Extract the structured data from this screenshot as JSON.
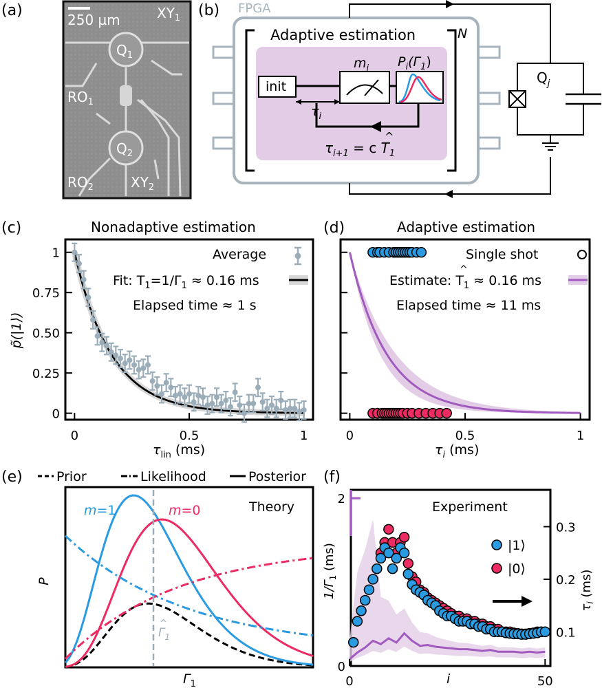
{
  "colors": {
    "blue": "#2a9be0",
    "pink": "#ec2b63",
    "purple": "#a15bbf",
    "purple_light": "#e3cde6",
    "gray": "#9aadb8",
    "fpga_gray": "#a7b4bd",
    "chip_bg": "#8a8a8a"
  },
  "panel_a": {
    "label": "(a)",
    "scalebar": "250 µm",
    "q1": "Q",
    "q1_sub": "1",
    "q2": "Q",
    "q2_sub": "2",
    "xy1": "XY",
    "xy1_sub": "1",
    "xy2": "XY",
    "xy2_sub": "2",
    "ro1": "RO",
    "ro1_sub": "1",
    "ro2": "RO",
    "ro2_sub": "2"
  },
  "panel_b": {
    "label": "(b)",
    "fpga": "FPGA",
    "title": "Adaptive estimation",
    "n": "N",
    "init": "init",
    "m": "m",
    "m_sub": "i",
    "p": "P",
    "p_sub": "i",
    "p_arg": "(Γ",
    "p_arg_sub": "1",
    "p_close": ")",
    "tau": "τ",
    "tau_sub": "i",
    "update_lhs": "τ",
    "update_lhs_sub": "i+1",
    "update_rhs": " = c ",
    "update_that": "T",
    "update_hat": "^",
    "update_that_sub": "1",
    "qubit": "Q",
    "qubit_sub": "j"
  },
  "panel_c": {
    "label": "(c)",
    "title": "Nonadaptive estimation",
    "ylabel": "p̃(|1⟩)",
    "xlabel": "τ",
    "xlabel_sub": "lin",
    "xlabel_unit": " (ms)",
    "legend_avg": "Average",
    "legend_fit": "Fit: T",
    "legend_fit_rest": "=1/Γ",
    "legend_fit_val": " ≈ 0.16 ms",
    "elapsed": "Elapsed time ≈ 1 s"
  },
  "panel_d": {
    "label": "(d)",
    "title": "Adaptive estimation",
    "xlabel": "τ",
    "xlabel_sub": "i",
    "xlabel_unit": " (ms)",
    "legend_single": "Single shot",
    "legend_est": "Estimate: T",
    "legend_est_val": " ≈ 0.16 ms",
    "elapsed": "Elapsed time ≈ 11 ms"
  },
  "panel_e": {
    "label": "(e)",
    "legend_prior": "Prior",
    "legend_like": "Likelihood",
    "legend_post": "Posterior",
    "m1": "m",
    "m1_val": "=1",
    "m0": "m",
    "m0_val": "=0",
    "theory": "Theory",
    "ylabel": "P",
    "xlabel": "Γ",
    "xlabel_sub": "1",
    "gamma_hat": "Γ",
    "gamma_hat_sub": "1"
  },
  "panel_f": {
    "label": "(f)",
    "title": "Experiment",
    "ylabel_left": "1/Γ",
    "ylabel_left_sub": "1",
    "ylabel_left_unit": " (ms)",
    "ylabel_right": "τ",
    "ylabel_right_sub": "i",
    "ylabel_right_unit": " (ms)",
    "xlabel": "i",
    "legend_1": "|1⟩",
    "legend_0": "|0⟩"
  },
  "chart_data": [
    {
      "type": "scatter",
      "panel": "c",
      "title": "Nonadaptive estimation",
      "xlabel": "τlin (ms)",
      "ylabel": "p̃(|1⟩)",
      "xlim": [
        -0.04,
        1.04
      ],
      "ylim": [
        -0.04,
        1.08
      ],
      "xticks": [
        "0",
        "0.5",
        "1"
      ],
      "yticks": [
        "0",
        "0.25",
        "0.50",
        "0.75",
        "1"
      ],
      "ytick_values": [
        0,
        0.25,
        0.5,
        0.75,
        1
      ],
      "xtick_values": [
        0,
        0.5,
        1
      ],
      "series": [
        {
          "name": "Average",
          "x": [
            0.0,
            0.02,
            0.04,
            0.06,
            0.08,
            0.1,
            0.12,
            0.14,
            0.16,
            0.18,
            0.2,
            0.22,
            0.24,
            0.26,
            0.28,
            0.3,
            0.32,
            0.34,
            0.36,
            0.38,
            0.4,
            0.42,
            0.44,
            0.46,
            0.48,
            0.5,
            0.52,
            0.54,
            0.56,
            0.58,
            0.6,
            0.62,
            0.64,
            0.66,
            0.68,
            0.7,
            0.72,
            0.74,
            0.76,
            0.78,
            0.8,
            0.82,
            0.84,
            0.86,
            0.88,
            0.9,
            0.92,
            0.94,
            0.96,
            0.98,
            1.0
          ],
          "y": [
            1.0,
            0.93,
            0.83,
            0.72,
            0.58,
            0.48,
            0.44,
            0.42,
            0.38,
            0.36,
            0.34,
            0.31,
            0.33,
            0.3,
            0.27,
            0.28,
            0.3,
            0.2,
            0.17,
            0.12,
            0.19,
            0.16,
            0.11,
            0.12,
            0.1,
            0.12,
            0.07,
            0.11,
            0.1,
            0.05,
            0.06,
            0.1,
            0.06,
            0.08,
            0.04,
            0.13,
            0.05,
            0.0,
            0.06,
            0.06,
            0.16,
            0.07,
            0.03,
            0.05,
            0.03,
            0.08,
            0.02,
            0.03,
            0.03,
            0.01,
            0.02
          ],
          "err": 0.055
        },
        {
          "name": "Fit",
          "function": "exp(-x/0.16)"
        }
      ]
    },
    {
      "type": "scatter",
      "panel": "d",
      "title": "Adaptive estimation",
      "xlabel": "τi (ms)",
      "xlim": [
        -0.04,
        1.04
      ],
      "ylim": [
        -0.04,
        1.08
      ],
      "xticks": [
        "0",
        "0.5",
        "1"
      ],
      "xtick_values": [
        0,
        0.5,
        1
      ],
      "series": [
        {
          "name": "Single shot |1⟩",
          "x": [
            0.1,
            0.12,
            0.13,
            0.15,
            0.17,
            0.19,
            0.2,
            0.21,
            0.22,
            0.23,
            0.24,
            0.25,
            0.26,
            0.27,
            0.29,
            0.31
          ],
          "y": [
            1,
            1,
            1,
            1,
            1,
            1,
            1,
            1,
            1,
            1,
            1,
            1,
            1,
            1,
            1,
            1
          ]
        },
        {
          "name": "Single shot |0⟩",
          "x": [
            0.1,
            0.12,
            0.14,
            0.15,
            0.16,
            0.17,
            0.18,
            0.19,
            0.2,
            0.21,
            0.22,
            0.23,
            0.25,
            0.27,
            0.3,
            0.33,
            0.36,
            0.39,
            0.42
          ],
          "y": [
            0,
            0,
            0,
            0,
            0,
            0,
            0,
            0,
            0,
            0,
            0,
            0,
            0,
            0,
            0,
            0,
            0,
            0,
            0
          ]
        },
        {
          "name": "Estimate",
          "function": "exp(-x/0.16)"
        }
      ]
    },
    {
      "type": "line",
      "panel": "e",
      "title": "Theory",
      "xlabel": "Γ1",
      "ylabel": "P",
      "series": [
        {
          "name": "Prior",
          "style": "dashed"
        },
        {
          "name": "Likelihood m=1",
          "style": "dashdot"
        },
        {
          "name": "Likelihood m=0",
          "style": "dashdot"
        },
        {
          "name": "Posterior m=1",
          "style": "solid"
        },
        {
          "name": "Posterior m=0",
          "style": "solid"
        }
      ]
    },
    {
      "type": "scatter",
      "panel": "f",
      "title": "Experiment",
      "xlabel": "i",
      "xlim": [
        0,
        51
      ],
      "xticks": [
        "0",
        "50"
      ],
      "xtick_values": [
        0,
        50
      ],
      "left_ylabel": "1/Γ1 (ms)",
      "left_ylim": [
        0,
        2.1
      ],
      "left_yticks": [
        "0",
        "2"
      ],
      "left_ytick_values": [
        0,
        2
      ],
      "right_ylabel": "τi (ms)",
      "right_ylim": [
        0.035,
        0.37
      ],
      "right_yticks": [
        "0.1",
        "0.2",
        "0.3"
      ],
      "right_ytick_values": [
        0.1,
        0.2,
        0.3
      ],
      "series": [
        {
          "name": "|1⟩",
          "x": [
            1,
            2,
            3,
            4,
            5,
            6,
            7,
            8,
            9,
            10,
            11,
            12,
            13,
            14,
            15,
            16,
            17,
            18,
            19,
            20,
            21,
            22,
            23,
            24,
            25,
            26,
            27,
            28,
            29,
            30,
            31,
            32,
            33,
            34,
            35,
            36,
            37,
            38,
            39,
            40,
            41,
            42,
            43,
            44,
            45,
            46,
            47,
            48,
            49,
            50
          ],
          "y": [
            0.08,
            0.12,
            0.14,
            0.16,
            0.18,
            0.2,
            0.22,
            0.24,
            0.26,
            0.25,
            0.22,
            0.24,
            0.26,
            0.25,
            0.21,
            0.19,
            0.18,
            0.175,
            0.17,
            0.16,
            0.155,
            0.15,
            0.14,
            0.135,
            0.13,
            0.13,
            0.125,
            0.12,
            0.12,
            0.12,
            0.115,
            0.115,
            0.11,
            0.11,
            0.105,
            0.105,
            0.1,
            0.1,
            0.1,
            0.098,
            0.097,
            0.096,
            0.096,
            0.095,
            0.095,
            0.096,
            0.097,
            0.098,
            0.1,
            0.1
          ]
        },
        {
          "name": "|0⟩",
          "x": [
            8,
            9,
            10,
            11,
            12,
            13,
            14,
            15,
            16,
            17,
            18,
            19,
            20,
            21,
            22,
            23,
            24,
            25,
            26,
            27,
            28,
            29,
            30,
            31,
            32,
            33,
            34,
            35,
            36,
            37,
            38,
            39,
            40,
            41,
            42,
            43,
            44,
            45,
            46,
            47,
            48,
            49,
            50
          ],
          "y": [
            0.25,
            0.27,
            0.295,
            0.27,
            0.25,
            0.27,
            0.28,
            0.23,
            0.205,
            0.195,
            0.18,
            0.175,
            0.165,
            0.16,
            0.155,
            0.15,
            0.145,
            0.14,
            0.135,
            0.13,
            0.13,
            0.125,
            0.125,
            0.12,
            0.12,
            0.115,
            0.115,
            0.11,
            0.11,
            0.105,
            0.105,
            0.1,
            0.1,
            0.1,
            0.098,
            0.097,
            0.096,
            0.096,
            0.097,
            0.098,
            0.1,
            0.1,
            0.1
          ]
        },
        {
          "name": "1/Γ1",
          "axis": "left",
          "x": [
            0,
            2,
            4,
            6,
            8,
            10,
            12,
            14,
            16,
            18,
            20,
            22,
            24,
            26,
            28,
            30,
            32,
            34,
            36,
            38,
            40,
            42,
            44,
            46,
            48,
            50
          ],
          "y": [
            0.08,
            0.16,
            0.22,
            0.3,
            0.26,
            0.33,
            0.28,
            0.39,
            0.3,
            0.24,
            0.25,
            0.23,
            0.22,
            0.21,
            0.2,
            0.2,
            0.19,
            0.18,
            0.19,
            0.17,
            0.17,
            0.17,
            0.16,
            0.17,
            0.16,
            0.17
          ]
        }
      ]
    }
  ]
}
